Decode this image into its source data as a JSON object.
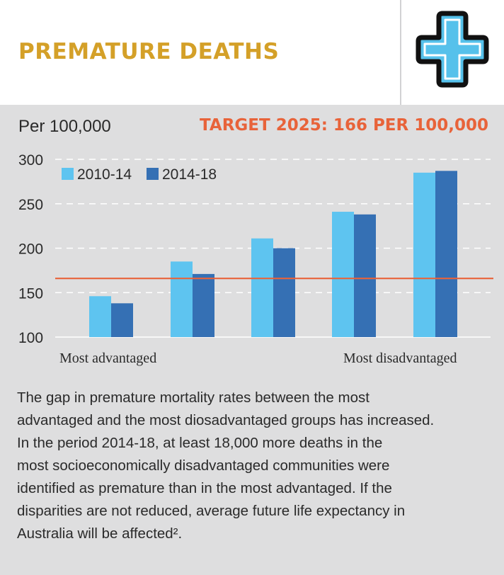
{
  "header": {
    "title": "PREMATURE DEATHS",
    "icon": "medical-cross-icon",
    "colors": {
      "title": "#d4a028",
      "icon_fill": "#56c1eb",
      "icon_stroke": "#111111"
    }
  },
  "chart_data": {
    "type": "bar",
    "title": "PREMATURE DEATHS",
    "ylabel": "Per 100,000",
    "xlabel": "",
    "ylim": [
      100,
      300
    ],
    "yticks": [
      100,
      150,
      200,
      250,
      300
    ],
    "ytick_labels": [
      "100",
      "150",
      "200",
      "250",
      "300"
    ],
    "grid": true,
    "categories": [
      "Most advantaged",
      "",
      "",
      "",
      "Most disadvantaged"
    ],
    "series": [
      {
        "name": "2010-14",
        "color": "#5ec4f0",
        "values": [
          146,
          185,
          211,
          241,
          285
        ]
      },
      {
        "name": "2014-18",
        "color": "#3570b4",
        "values": [
          138,
          171,
          200,
          238,
          287
        ]
      }
    ],
    "target": {
      "label": "TARGET 2025: 166 PER 100,000",
      "value": 166,
      "color": "#e8633a"
    },
    "legend_position": "top-left"
  },
  "note": {
    "lines": [
      "The gap in premature mortality rates between the most",
      "advantaged and the most diosadvantaged groups has increased.",
      "In the period 2014-18, at least 18,000 more deaths in the",
      "most socioeconomically disadvantaged communities were",
      "identified as premature than in the most advantaged. If the",
      "disparities are not reduced, average future life expectancy in",
      "Australia will be affected²."
    ]
  }
}
